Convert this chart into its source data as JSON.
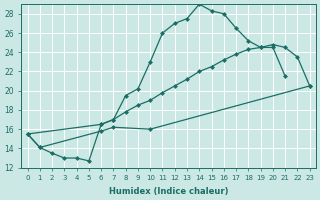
{
  "xlabel": "Humidex (Indice chaleur)",
  "bg_color": "#cce8e5",
  "grid_color": "#ffffff",
  "line_color": "#1a6e65",
  "xlim": [
    -0.5,
    23.5
  ],
  "ylim": [
    12,
    29
  ],
  "xticks": [
    0,
    1,
    2,
    3,
    4,
    5,
    6,
    7,
    8,
    9,
    10,
    11,
    12,
    13,
    14,
    15,
    16,
    17,
    18,
    19,
    20,
    21,
    22,
    23
  ],
  "yticks": [
    12,
    14,
    16,
    18,
    20,
    22,
    24,
    26,
    28
  ],
  "line1": {
    "x": [
      0,
      1,
      2,
      3,
      4,
      5,
      6,
      7,
      8,
      9,
      10,
      11,
      12,
      13,
      14,
      15,
      16,
      17,
      18,
      19,
      20,
      21
    ],
    "y": [
      15.5,
      14.1,
      13.5,
      13.0,
      13.0,
      12.7,
      16.5,
      17.0,
      19.5,
      20.2,
      23.0,
      26.0,
      27.0,
      27.5,
      29.0,
      28.3,
      28.0,
      26.5,
      25.2,
      24.5,
      24.5,
      21.5
    ]
  },
  "line2": {
    "x": [
      0,
      6,
      7,
      8,
      9,
      10,
      11,
      12,
      13,
      14,
      15,
      16,
      17,
      18,
      19,
      20,
      21,
      22,
      23
    ],
    "y": [
      15.5,
      16.5,
      17.0,
      17.8,
      18.5,
      19.0,
      19.8,
      20.5,
      21.2,
      22.0,
      22.5,
      23.2,
      23.8,
      24.3,
      24.5,
      24.8,
      24.5,
      23.5,
      20.5
    ]
  },
  "line3": {
    "x": [
      0,
      1,
      6,
      7,
      10,
      23
    ],
    "y": [
      15.5,
      14.1,
      15.8,
      16.2,
      16.0,
      20.5
    ]
  }
}
